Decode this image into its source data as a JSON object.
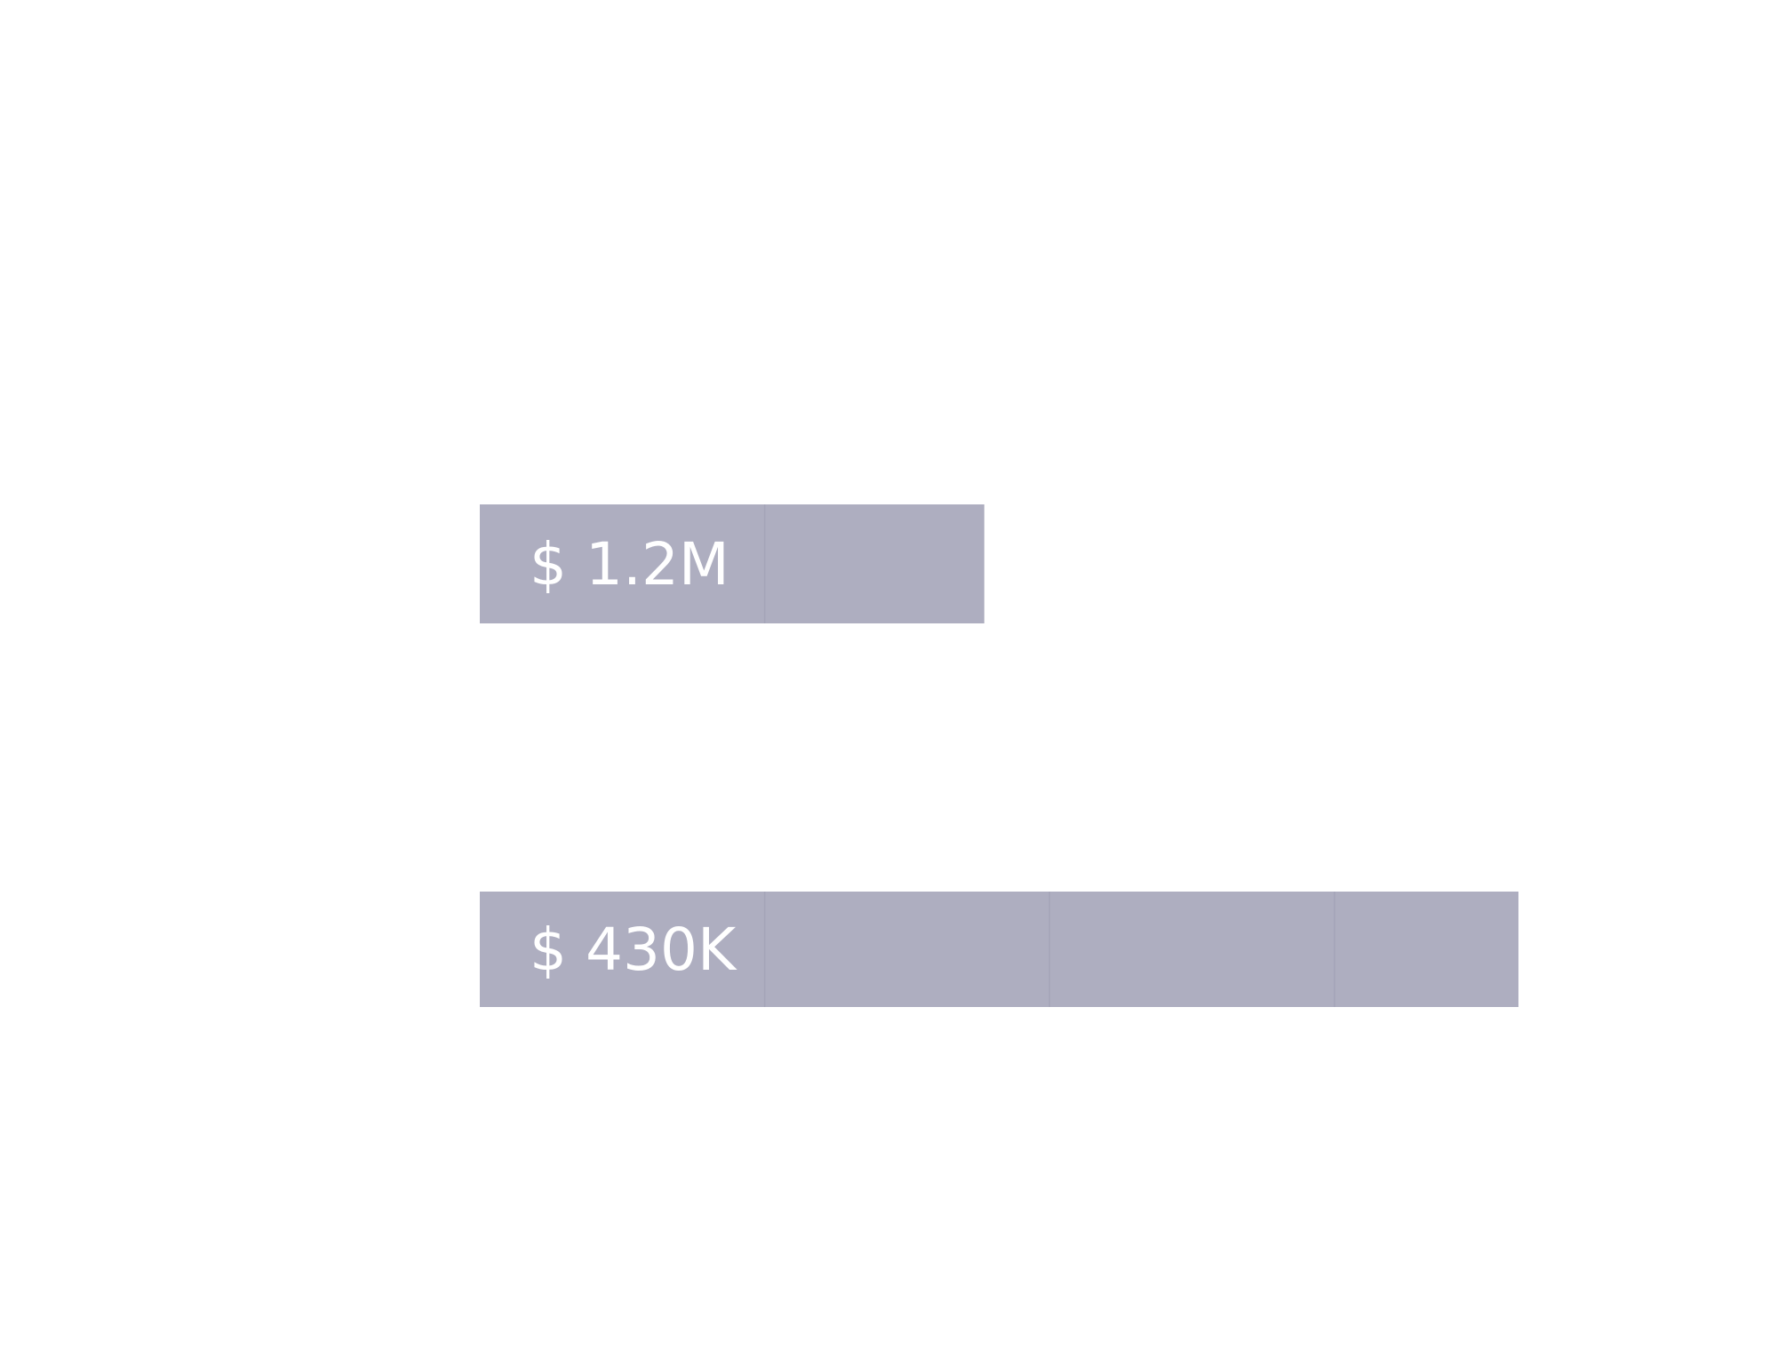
{
  "chart_data": {
    "type": "bar",
    "orientation": "horizontal",
    "title": "",
    "xlabel": "",
    "ylabel": "",
    "grid": false,
    "legend": "none",
    "bar_color": "#aeaec0",
    "label_color": "#ffffff",
    "segment_divider_color": "#a4a4b8",
    "xlim": [
      0,
      7
    ],
    "bars": [
      {
        "label": "$ 1.2M",
        "value": 3.4
      },
      {
        "label": "$ 430K",
        "value": 7.0
      }
    ]
  }
}
